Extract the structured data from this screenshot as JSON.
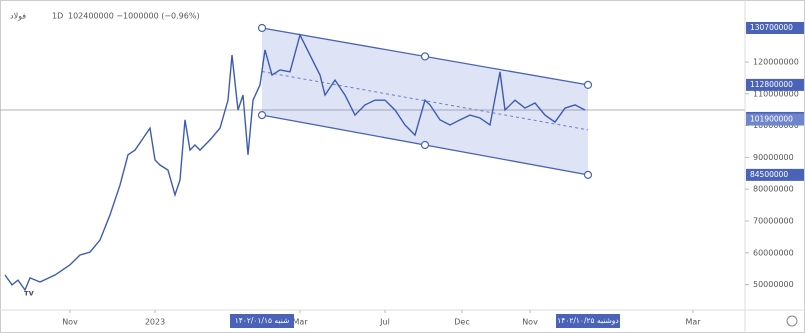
{
  "chart_data": {
    "type": "line",
    "symbol": "فولاد",
    "interval": "1D",
    "quote": "102400000 −1000000 (−0.96%)",
    "color": "#3d5bb5",
    "x": [
      5,
      12,
      18,
      25,
      30,
      40,
      55,
      70,
      80,
      90,
      100,
      110,
      120,
      128,
      135,
      142,
      150,
      155,
      160,
      168,
      175,
      180,
      185,
      190,
      195,
      200,
      210,
      220,
      228,
      232,
      238,
      243,
      248,
      253,
      260,
      265,
      272,
      280,
      290,
      300,
      310,
      320,
      325,
      335,
      345,
      355,
      365,
      375,
      385,
      395,
      405,
      415,
      425,
      430,
      440,
      450,
      460,
      470,
      480,
      490,
      500,
      505,
      515,
      525,
      535,
      545,
      555,
      565,
      575,
      585
    ],
    "values": [
      53000000,
      49900000,
      51400000,
      48300000,
      52100000,
      50800000,
      53000000,
      56200000,
      59300000,
      60200000,
      64000000,
      71900000,
      81300000,
      90800000,
      92300000,
      95500000,
      99200000,
      89200000,
      87600000,
      86000000,
      78200000,
      82900000,
      101800000,
      92300000,
      93900000,
      92300000,
      95500000,
      99200000,
      108000000,
      122200000,
      104900000,
      109600000,
      90800000,
      108000000,
      112800000,
      123800000,
      115900000,
      117500000,
      116900000,
      128500000,
      122200000,
      115900000,
      109600000,
      114300000,
      109600000,
      103300000,
      106500000,
      108000000,
      108000000,
      104900000,
      100200000,
      97000000,
      108000000,
      106500000,
      101800000,
      100200000,
      101800000,
      103300000,
      102400000,
      100200000,
      116900000,
      104900000,
      108000000,
      105500000,
      107100000,
      103300000,
      101100000,
      105500000,
      106500000,
      104900000
    ],
    "xlim": [
      0,
      745
    ],
    "ylim": [
      42000000,
      139500000
    ],
    "yticks": [
      50000000,
      60000000,
      70000000,
      80000000,
      90000000,
      100000000,
      110000000,
      120000000
    ],
    "xticks": [
      {
        "value": 70,
        "label": "Nov"
      },
      {
        "value": 155,
        "label": "2023"
      },
      {
        "value": 300,
        "label": "Mar"
      },
      {
        "value": 385,
        "label": "Jul"
      },
      {
        "value": 462,
        "label": "Dec"
      },
      {
        "value": 530,
        "label": "Nov"
      },
      {
        "value": 693,
        "label": "Mar"
      }
    ],
    "channel": {
      "x": [
        262,
        588
      ],
      "upper": [
        130700000,
        112800000
      ],
      "lower": [
        103300000,
        84500000
      ]
    },
    "price_labels": [
      {
        "value": 130700000,
        "label": "130700000"
      },
      {
        "value": 112800000,
        "label": "112800000"
      },
      {
        "value": 102400000,
        "label": "102400000"
      },
      {
        "value": 101900000,
        "label": "101900000"
      },
      {
        "value": 84500000,
        "label": "84500000"
      }
    ],
    "time_labels": [
      {
        "value": 262,
        "label": "۱۴۰۲/۰۱/۱۵ شنبه"
      },
      {
        "value": 588,
        "label": "۱۴۰۲/۱۰/۲۵ دوشنبه"
      }
    ]
  }
}
